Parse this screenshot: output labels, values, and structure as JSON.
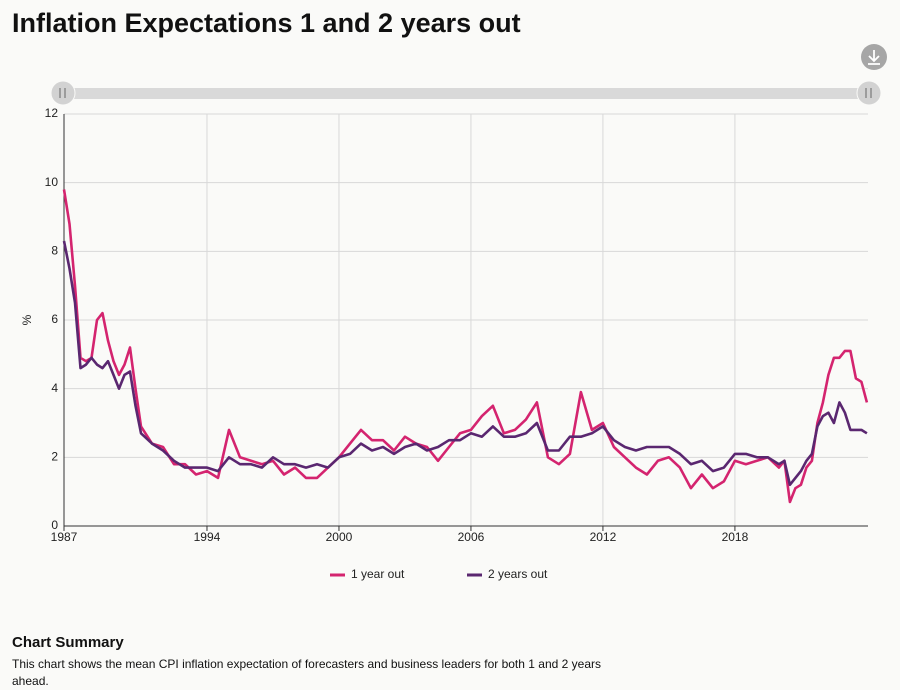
{
  "chart_data": {
    "type": "line",
    "title": "Inflation Expectations 1 and 2 years out",
    "y_label": "%",
    "summary_title": "Chart Summary",
    "summary": "This chart shows the mean CPI inflation expectation of forecasters and business leaders for both 1 and 2 years ahead.",
    "x": [
      1987.5,
      1987.75,
      1988,
      1988.25,
      1988.5,
      1988.75,
      1989,
      1989.25,
      1989.5,
      1989.75,
      1990,
      1990.25,
      1990.5,
      1990.75,
      1991,
      1991.5,
      1992,
      1992.5,
      1993,
      1993.5,
      1994,
      1994.5,
      1995,
      1995.5,
      1996,
      1996.5,
      1997,
      1997.5,
      1998,
      1998.5,
      1999,
      1999.5,
      2000,
      2000.5,
      2001,
      2001.5,
      2002,
      2002.5,
      2003,
      2003.5,
      2004,
      2004.5,
      2005,
      2005.5,
      2006,
      2006.5,
      2007,
      2007.5,
      2008,
      2008.5,
      2009,
      2009.5,
      2010,
      2010.5,
      2011,
      2011.5,
      2012,
      2012.5,
      2013,
      2013.5,
      2014,
      2014.5,
      2015,
      2015.5,
      2016,
      2016.5,
      2017,
      2017.5,
      2018,
      2018.5,
      2019,
      2019.5,
      2020,
      2020.25,
      2020.5,
      2020.75,
      2021,
      2021.25,
      2021.5,
      2021.75,
      2022,
      2022.25,
      2022.5,
      2022.75,
      2023,
      2023.25,
      2023.5,
      2023.75,
      2024
    ],
    "series": [
      {
        "name": "1 year out",
        "color": "#d4246f",
        "values": [
          9.8,
          8.8,
          7.0,
          4.9,
          4.8,
          4.9,
          6.0,
          6.2,
          5.4,
          4.8,
          4.4,
          4.7,
          5.2,
          4.0,
          2.9,
          2.4,
          2.3,
          1.8,
          1.8,
          1.5,
          1.6,
          1.4,
          2.8,
          2.0,
          1.9,
          1.8,
          1.9,
          1.5,
          1.7,
          1.4,
          1.4,
          1.7,
          2.0,
          2.4,
          2.8,
          2.5,
          2.5,
          2.2,
          2.6,
          2.4,
          2.3,
          1.9,
          2.3,
          2.7,
          2.8,
          3.2,
          3.5,
          2.7,
          2.8,
          3.1,
          3.6,
          2.0,
          1.8,
          2.1,
          3.9,
          2.8,
          3.0,
          2.3,
          2.0,
          1.7,
          1.5,
          1.9,
          2.0,
          1.7,
          1.1,
          1.5,
          1.1,
          1.3,
          1.9,
          1.8,
          1.9,
          2.0,
          1.7,
          1.9,
          0.7,
          1.1,
          1.2,
          1.7,
          1.9,
          3.0,
          3.6,
          4.4,
          4.9,
          4.9,
          5.1,
          5.1,
          4.3,
          4.2,
          3.6
        ]
      },
      {
        "name": "2 years out",
        "color": "#5a2770",
        "values": [
          8.3,
          7.5,
          6.5,
          4.6,
          4.7,
          4.9,
          4.7,
          4.6,
          4.8,
          4.4,
          4.0,
          4.4,
          4.5,
          3.5,
          2.7,
          2.4,
          2.2,
          1.9,
          1.7,
          1.7,
          1.7,
          1.6,
          2.0,
          1.8,
          1.8,
          1.7,
          2.0,
          1.8,
          1.8,
          1.7,
          1.8,
          1.7,
          2.0,
          2.1,
          2.4,
          2.2,
          2.3,
          2.1,
          2.3,
          2.4,
          2.2,
          2.3,
          2.5,
          2.5,
          2.7,
          2.6,
          2.9,
          2.6,
          2.6,
          2.7,
          3.0,
          2.2,
          2.2,
          2.6,
          2.6,
          2.7,
          2.9,
          2.5,
          2.3,
          2.2,
          2.3,
          2.3,
          2.3,
          2.1,
          1.8,
          1.9,
          1.6,
          1.7,
          2.1,
          2.1,
          2.0,
          2.0,
          1.8,
          1.9,
          1.2,
          1.4,
          1.6,
          1.9,
          2.1,
          2.9,
          3.2,
          3.3,
          3.0,
          3.6,
          3.3,
          2.8,
          2.8,
          2.8,
          2.7
        ]
      }
    ],
    "xlim": [
      1987.5,
      2024.05
    ],
    "xticks": [
      {
        "value": 1987.5,
        "label": "1987"
      },
      1994,
      2000,
      2006,
      2012,
      2018
    ],
    "ylim": [
      0,
      12
    ],
    "yticks": [
      0,
      2,
      4,
      6,
      8,
      10,
      12
    ],
    "grid": true
  }
}
